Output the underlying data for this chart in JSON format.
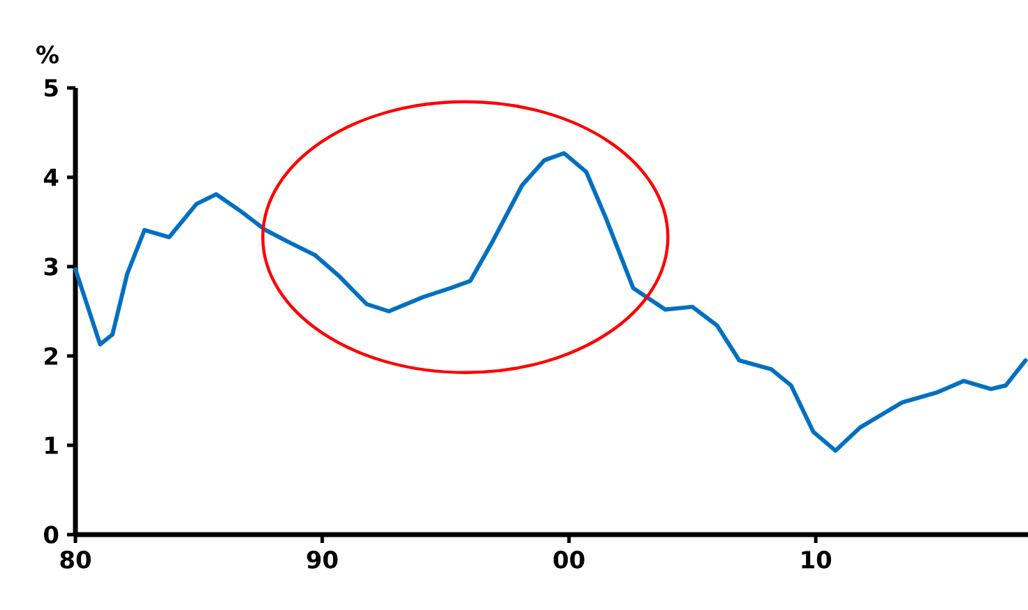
{
  "chart_data": {
    "type": "line",
    "ylabel": "%",
    "x": [
      1980.0,
      1981.0,
      1981.5,
      1982.1,
      1982.8,
      1983.8,
      1984.9,
      1985.7,
      1986.7,
      1987.7,
      1988.6,
      1989.7,
      1990.7,
      1991.8,
      1992.7,
      1994.1,
      1995.2,
      1996.0,
      1996.9,
      1998.1,
      1999.0,
      1999.8,
      2000.7,
      2001.5,
      2002.6,
      2003.9,
      2005.0,
      2006.0,
      2006.9,
      2008.2,
      2009.0,
      2009.9,
      2010.8,
      2011.8,
      2013.5,
      2014.9,
      2016.0,
      2017.1,
      2017.7,
      2018.5
    ],
    "series": [
      {
        "color": "#0070c0",
        "values": [
          2.97,
          2.13,
          2.24,
          2.92,
          3.41,
          3.33,
          3.7,
          3.81,
          3.62,
          3.41,
          3.28,
          3.13,
          2.89,
          2.58,
          2.5,
          2.66,
          2.76,
          2.84,
          3.28,
          3.91,
          4.19,
          4.27,
          4.06,
          3.54,
          2.76,
          2.52,
          2.55,
          2.34,
          1.95,
          1.85,
          1.67,
          1.15,
          0.94,
          1.2,
          1.48,
          1.59,
          1.72,
          1.63,
          1.67,
          1.95
        ]
      }
    ],
    "xlim": [
      1980,
      2018.6
    ],
    "ylim": [
      0,
      5
    ],
    "xticks": [
      {
        "value": 1980,
        "label": "80"
      },
      {
        "value": 1990,
        "label": "90"
      },
      {
        "value": 2000,
        "label": "00"
      },
      {
        "value": 2010,
        "label": "10"
      }
    ],
    "yticks": [
      0,
      1,
      2,
      3,
      4,
      5
    ],
    "grid": false,
    "marker": "none",
    "line_style": "solid"
  }
}
